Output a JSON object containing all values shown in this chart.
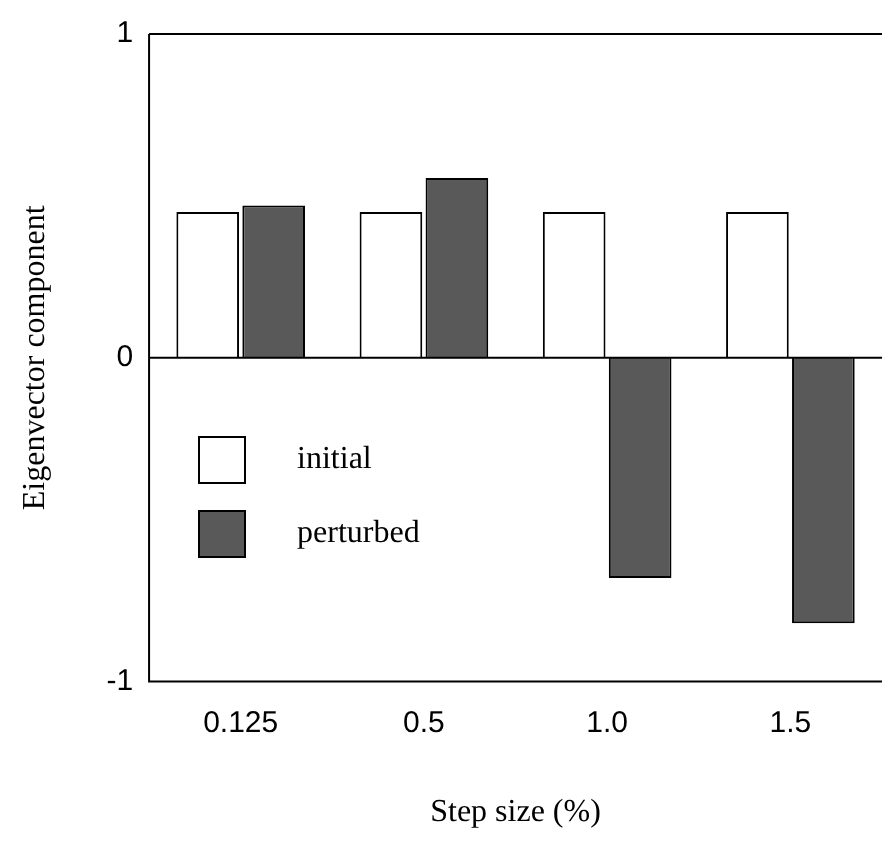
{
  "chart_data": {
    "type": "bar",
    "xlabel": "Step size (%)",
    "ylabel": "Eigenvector component",
    "categories": [
      "0.125",
      "0.5",
      "1.0",
      "1.5"
    ],
    "series": [
      {
        "name": "initial",
        "color": "#ffffff",
        "values": [
          0.45,
          0.45,
          0.45,
          0.45
        ]
      },
      {
        "name": "perturbed",
        "color": "#595959",
        "values": [
          0.47,
          0.555,
          -0.68,
          -0.82
        ]
      }
    ],
    "ylim": [
      -1,
      1
    ],
    "yticks": [
      -1,
      0,
      1
    ],
    "ref_lines": [
      {
        "axis": "y",
        "value": 0,
        "color": "#000000"
      }
    ],
    "legend": "left",
    "grid": false
  }
}
